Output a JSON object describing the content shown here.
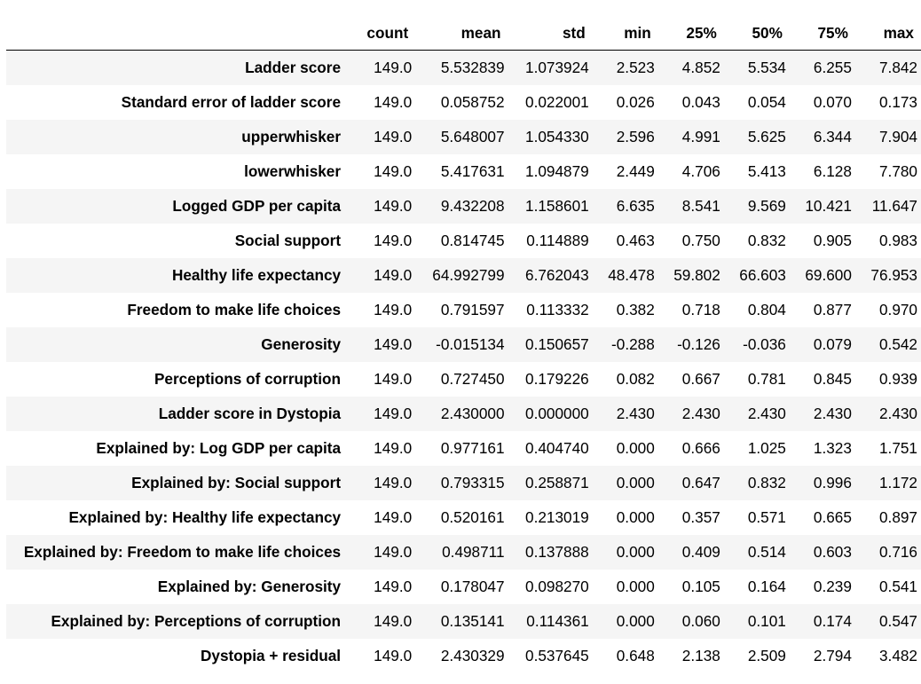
{
  "table": {
    "columns": [
      "count",
      "mean",
      "std",
      "min",
      "25%",
      "50%",
      "75%",
      "max"
    ],
    "rows": [
      {
        "label": "Ladder score",
        "values": [
          "149.0",
          "5.532839",
          "1.073924",
          "2.523",
          "4.852",
          "5.534",
          "6.255",
          "7.842"
        ]
      },
      {
        "label": "Standard error of ladder score",
        "values": [
          "149.0",
          "0.058752",
          "0.022001",
          "0.026",
          "0.043",
          "0.054",
          "0.070",
          "0.173"
        ]
      },
      {
        "label": "upperwhisker",
        "values": [
          "149.0",
          "5.648007",
          "1.054330",
          "2.596",
          "4.991",
          "5.625",
          "6.344",
          "7.904"
        ]
      },
      {
        "label": "lowerwhisker",
        "values": [
          "149.0",
          "5.417631",
          "1.094879",
          "2.449",
          "4.706",
          "5.413",
          "6.128",
          "7.780"
        ]
      },
      {
        "label": "Logged GDP per capita",
        "values": [
          "149.0",
          "9.432208",
          "1.158601",
          "6.635",
          "8.541",
          "9.569",
          "10.421",
          "11.647"
        ]
      },
      {
        "label": "Social support",
        "values": [
          "149.0",
          "0.814745",
          "0.114889",
          "0.463",
          "0.750",
          "0.832",
          "0.905",
          "0.983"
        ]
      },
      {
        "label": "Healthy life expectancy",
        "values": [
          "149.0",
          "64.992799",
          "6.762043",
          "48.478",
          "59.802",
          "66.603",
          "69.600",
          "76.953"
        ]
      },
      {
        "label": "Freedom to make life choices",
        "values": [
          "149.0",
          "0.791597",
          "0.113332",
          "0.382",
          "0.718",
          "0.804",
          "0.877",
          "0.970"
        ]
      },
      {
        "label": "Generosity",
        "values": [
          "149.0",
          "-0.015134",
          "0.150657",
          "-0.288",
          "-0.126",
          "-0.036",
          "0.079",
          "0.542"
        ]
      },
      {
        "label": "Perceptions of corruption",
        "values": [
          "149.0",
          "0.727450",
          "0.179226",
          "0.082",
          "0.667",
          "0.781",
          "0.845",
          "0.939"
        ]
      },
      {
        "label": "Ladder score in Dystopia",
        "values": [
          "149.0",
          "2.430000",
          "0.000000",
          "2.430",
          "2.430",
          "2.430",
          "2.430",
          "2.430"
        ]
      },
      {
        "label": "Explained by: Log GDP per capita",
        "values": [
          "149.0",
          "0.977161",
          "0.404740",
          "0.000",
          "0.666",
          "1.025",
          "1.323",
          "1.751"
        ]
      },
      {
        "label": "Explained by: Social support",
        "values": [
          "149.0",
          "0.793315",
          "0.258871",
          "0.000",
          "0.647",
          "0.832",
          "0.996",
          "1.172"
        ]
      },
      {
        "label": "Explained by: Healthy life expectancy",
        "values": [
          "149.0",
          "0.520161",
          "0.213019",
          "0.000",
          "0.357",
          "0.571",
          "0.665",
          "0.897"
        ]
      },
      {
        "label": "Explained by: Freedom to make life choices",
        "values": [
          "149.0",
          "0.498711",
          "0.137888",
          "0.000",
          "0.409",
          "0.514",
          "0.603",
          "0.716"
        ]
      },
      {
        "label": "Explained by: Generosity",
        "values": [
          "149.0",
          "0.178047",
          "0.098270",
          "0.000",
          "0.105",
          "0.164",
          "0.239",
          "0.541"
        ]
      },
      {
        "label": "Explained by: Perceptions of corruption",
        "values": [
          "149.0",
          "0.135141",
          "0.114361",
          "0.000",
          "0.060",
          "0.101",
          "0.174",
          "0.547"
        ]
      },
      {
        "label": "Dystopia + residual",
        "values": [
          "149.0",
          "2.430329",
          "0.537645",
          "0.648",
          "2.138",
          "2.509",
          "2.794",
          "3.482"
        ]
      }
    ]
  },
  "colors": {
    "stripe": "#f5f5f5",
    "background": "#ffffff",
    "text": "#000000",
    "header_rule": "#000000"
  }
}
